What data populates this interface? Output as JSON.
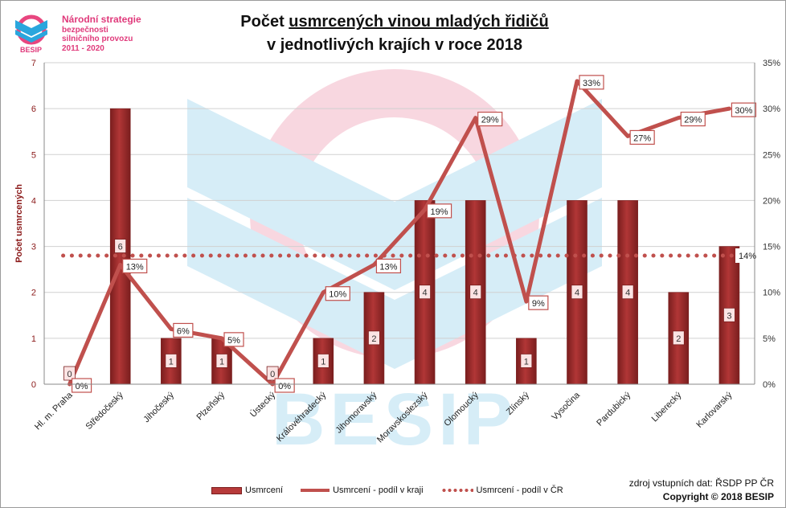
{
  "logo": {
    "line1": "Národní strategie",
    "line2": "bezpečnosti",
    "line3": "silničního provozu",
    "line4": "2011 - 2020",
    "brand": "BESIP"
  },
  "title": {
    "line1_pre": "Počet ",
    "line1_underlined": "usmrcených vinou mladých řidičů",
    "line2": "v jednotlivých krajích v roce 2018"
  },
  "watermark": "BESIP",
  "source_text": "zdroj vstupních dat: ŘSDP PP ČR",
  "copyright_text": "Copyright © 2018  BESIP",
  "colors": {
    "bar_fill": "#b13636",
    "bar_dark": "#7a1e1e",
    "line": "#c0504d",
    "label_border": "#c0504d",
    "watermark_pink": "#f4b8c8",
    "watermark_blue": "#b5dff2",
    "axis_left_label": "#8b1a1a"
  },
  "chart_data": {
    "type": "bar",
    "categories": [
      "Hl. m. Praha",
      "Středočeský",
      "Jihočeský",
      "Plzeňský",
      "Ústecký",
      "Královéhradecký",
      "Jihomoravský",
      "Moravskoslezský",
      "Olomoucký",
      "Zlínský",
      "Vysočina",
      "Pardubický",
      "Liberecký",
      "Karlovarský"
    ],
    "ylabel": "Počet usmrcených",
    "ylim": [
      0,
      7
    ],
    "yticks": [
      "0",
      "1",
      "2",
      "3",
      "4",
      "5",
      "6",
      "7"
    ],
    "y2lim": [
      0,
      35
    ],
    "y2ticks": [
      "0%",
      "5%",
      "10%",
      "15%",
      "20%",
      "25%",
      "30%",
      "35%"
    ],
    "grid": true,
    "legend_position": "bottom",
    "series": [
      {
        "name": "Usmrcení",
        "type": "bar",
        "axis": "left",
        "values": [
          0,
          6,
          1,
          1,
          0,
          1,
          2,
          4,
          4,
          1,
          4,
          4,
          2,
          3
        ],
        "labels": [
          "0",
          "6",
          "1",
          "1",
          "0",
          "1",
          "2",
          "4",
          "4",
          "1",
          "4",
          "4",
          "2",
          "3"
        ]
      },
      {
        "name": "Usmrcení - podíl v kraji",
        "type": "line",
        "axis": "right",
        "values": [
          0,
          13,
          6,
          5,
          0,
          10,
          13,
          19,
          29,
          9,
          33,
          27,
          29,
          30
        ],
        "labels": [
          "0%",
          "13%",
          "6%",
          "5%",
          "0%",
          "10%",
          "13%",
          "19%",
          "29%",
          "9%",
          "33%",
          "27%",
          "29%",
          "30%"
        ]
      },
      {
        "name": "Usmrcení - podíl v ČR",
        "type": "line-dotted",
        "axis": "right",
        "value": 14,
        "label": "14%"
      }
    ]
  }
}
